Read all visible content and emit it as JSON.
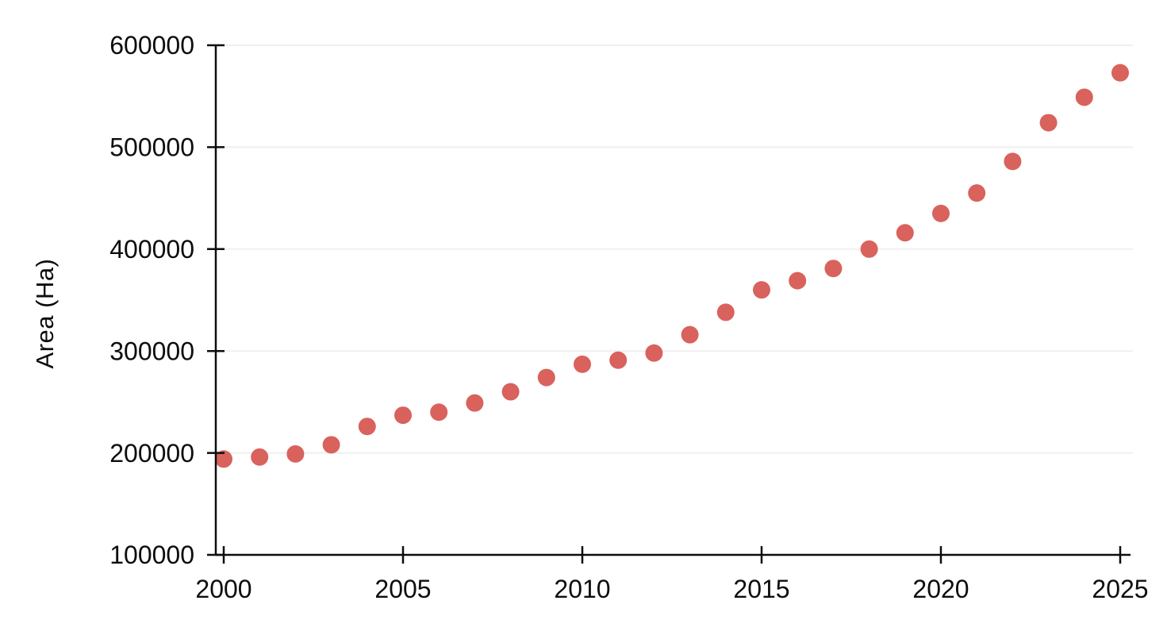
{
  "page": {
    "background_color": "#ffffff"
  },
  "chart_data": {
    "type": "scatter",
    "title": "",
    "xlabel": "",
    "ylabel": "Area (Ha)",
    "x": [
      2000,
      2001,
      2002,
      2003,
      2004,
      2005,
      2006,
      2007,
      2008,
      2009,
      2010,
      2011,
      2012,
      2013,
      2014,
      2015,
      2016,
      2017,
      2018,
      2019,
      2020,
      2021,
      2022,
      2023,
      2024,
      2025
    ],
    "y": [
      194000,
      196000,
      199000,
      208000,
      226000,
      237000,
      240000,
      249000,
      260000,
      274000,
      287000,
      291000,
      298000,
      316000,
      338000,
      360000,
      369000,
      381000,
      400000,
      416000,
      435000,
      455000,
      486000,
      524000,
      549000,
      573000
    ],
    "xticks": [
      2000,
      2005,
      2010,
      2015,
      2020,
      2025
    ],
    "yticks": [
      100000,
      200000,
      300000,
      400000,
      500000,
      600000
    ],
    "xlim": [
      1999.8,
      2025.3
    ],
    "ylim": [
      100000,
      600000
    ],
    "grid": "horizontal-only",
    "legend": "none",
    "marker_color": "#d9625c",
    "grid_color": "#efefef",
    "axis_color": "#0d0d0d"
  }
}
